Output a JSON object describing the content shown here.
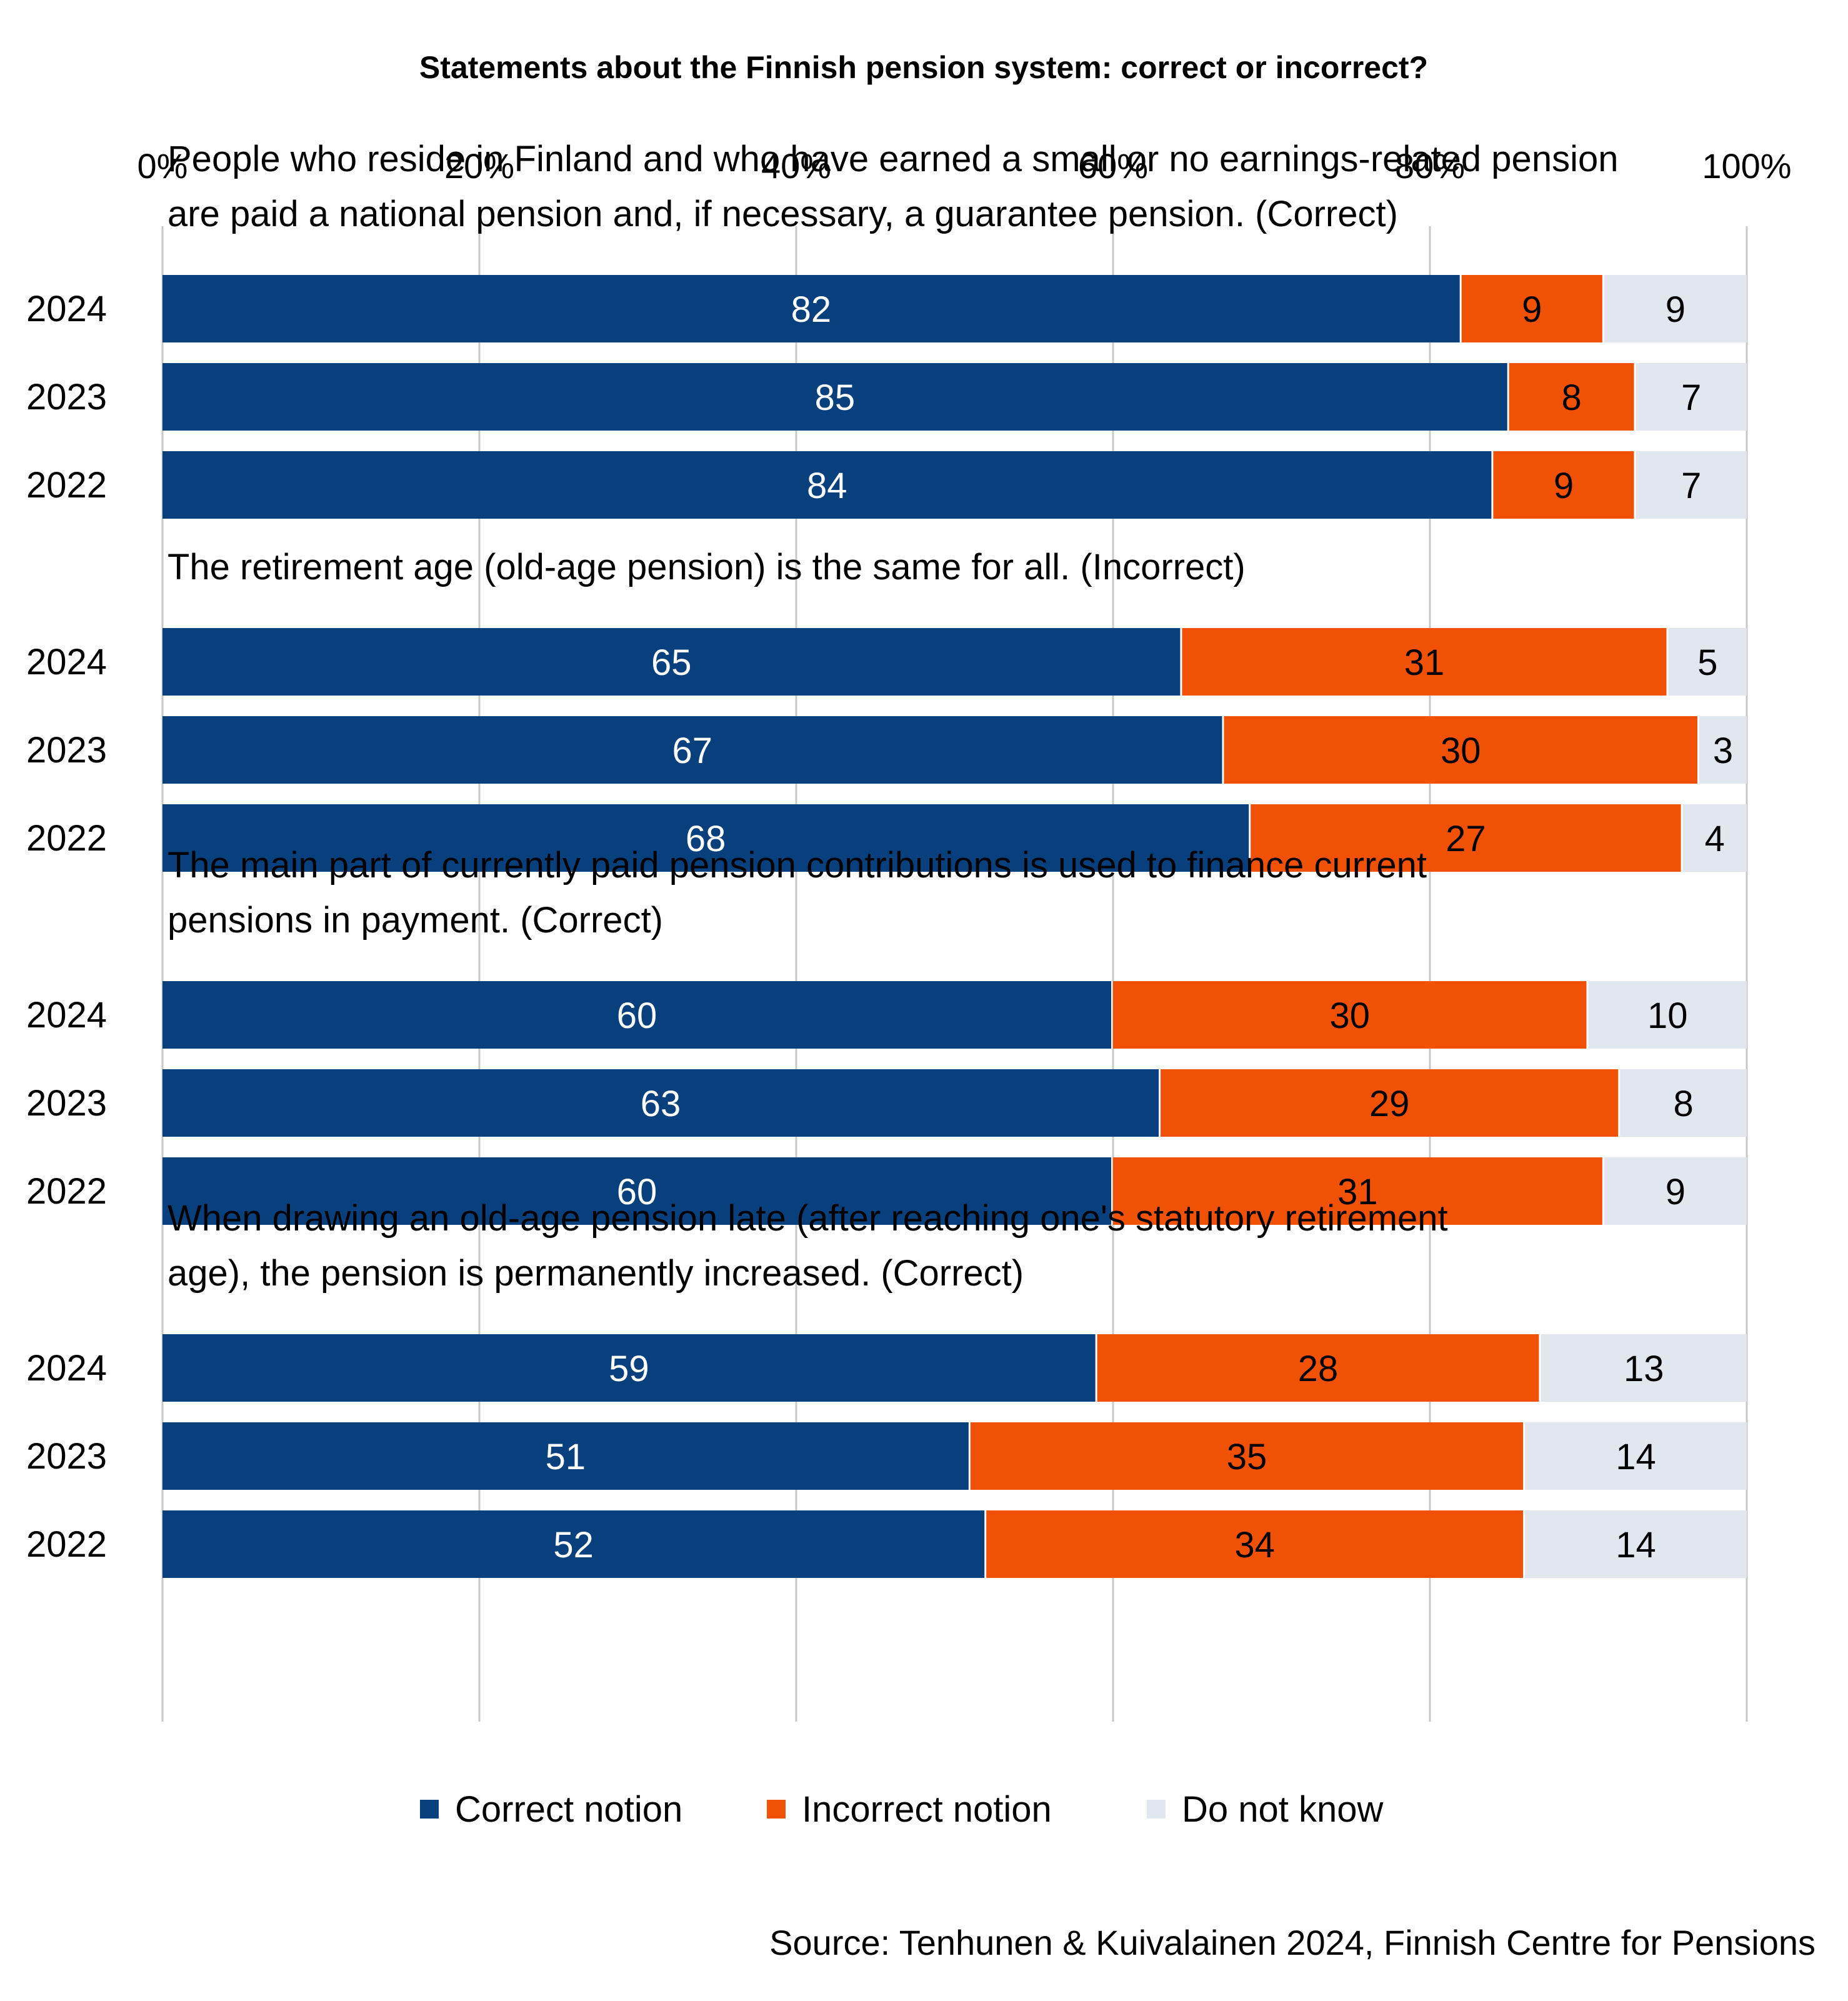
{
  "chart_data": {
    "type": "bar",
    "orientation": "horizontal",
    "stacked": true,
    "title": "Statements about the Finnish pension system: correct or incorrect?",
    "xlim": [
      0,
      100
    ],
    "x_ticks": [
      "0%",
      "20%",
      "40%",
      "60%",
      "80%",
      "100%"
    ],
    "grid": true,
    "legend_position": "bottom",
    "colors": {
      "correct": "#08407e",
      "incorrect": "#f05104",
      "dontknow": "#e2e6ee",
      "grid": "#c8c8c8"
    },
    "legend": [
      {
        "key": "correct",
        "label": "Correct notion"
      },
      {
        "key": "incorrect",
        "label": "Incorrect notion"
      },
      {
        "key": "dontknow",
        "label": "Do not know"
      }
    ],
    "groups": [
      {
        "statement_lines": [
          "People who reside in Finland and who have earned a small or no earnings-related pension",
          "are paid a national pension and, if necessary, a guarantee pension. (Correct)"
        ],
        "rows": [
          {
            "year": "2024",
            "correct": 82,
            "incorrect": 9,
            "dontknow": 9
          },
          {
            "year": "2023",
            "correct": 85,
            "incorrect": 8,
            "dontknow": 7
          },
          {
            "year": "2022",
            "correct": 84,
            "incorrect": 9,
            "dontknow": 7
          }
        ]
      },
      {
        "statement_lines": [
          "The retirement age (old-age pension) is the same for all. (Incorrect)"
        ],
        "rows": [
          {
            "year": "2024",
            "correct": 65,
            "incorrect": 31,
            "dontknow": 5
          },
          {
            "year": "2023",
            "correct": 67,
            "incorrect": 30,
            "dontknow": 3
          },
          {
            "year": "2022",
            "correct": 68,
            "incorrect": 27,
            "dontknow": 4
          }
        ]
      },
      {
        "statement_lines": [
          "The main part of currently paid pension contributions is used to finance current",
          "pensions in payment. (Correct)"
        ],
        "rows": [
          {
            "year": "2024",
            "correct": 60,
            "incorrect": 30,
            "dontknow": 10
          },
          {
            "year": "2023",
            "correct": 63,
            "incorrect": 29,
            "dontknow": 8
          },
          {
            "year": "2022",
            "correct": 60,
            "incorrect": 31,
            "dontknow": 9
          }
        ]
      },
      {
        "statement_lines": [
          "When drawing an old-age pension late (after reaching one's statutory retirement",
          "age), the pension is permanently increased. (Correct)"
        ],
        "rows": [
          {
            "year": "2024",
            "correct": 59,
            "incorrect": 28,
            "dontknow": 13
          },
          {
            "year": "2023",
            "correct": 51,
            "incorrect": 35,
            "dontknow": 14
          },
          {
            "year": "2022",
            "correct": 52,
            "incorrect": 34,
            "dontknow": 14
          }
        ]
      }
    ],
    "source": "Source: Tenhunen & Kuivalainen 2024, Finnish Centre for Pensions"
  }
}
